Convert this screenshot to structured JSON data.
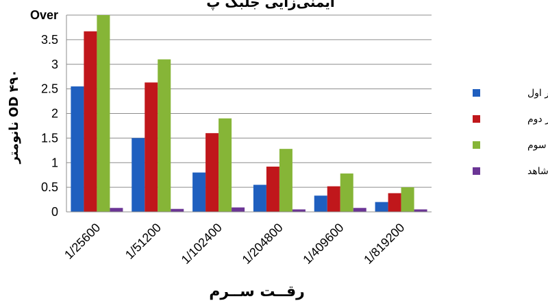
{
  "chart_data": {
    "type": "bar",
    "title": "ایمنی‌زایی جلبک پ",
    "xlabel": "رقــت ســرم",
    "ylabel": "OD ۴۹۰ نانومتر",
    "categories": [
      "1/25600",
      "1/51200",
      "1/102400",
      "1/204800",
      "1/409600",
      "1/819200"
    ],
    "y_ticks": [
      "Over",
      "3.5",
      "3",
      "2.5",
      "2",
      "1.5",
      "1",
      "0.5",
      "0"
    ],
    "ylim": [
      0,
      4
    ],
    "grid": "horizontal",
    "legend_position": "right",
    "series": [
      {
        "name": "یادآور اول",
        "color": "#1f5fbf",
        "values": [
          2.55,
          1.5,
          0.8,
          0.55,
          0.33,
          0.2
        ]
      },
      {
        "name": "یادآور دوم",
        "color": "#c0171b",
        "values": [
          3.67,
          2.63,
          1.6,
          0.92,
          0.52,
          0.38
        ]
      },
      {
        "name": "یادآور سوم",
        "color": "#86b537",
        "values": [
          4.0,
          3.1,
          1.9,
          1.28,
          0.78,
          0.5
        ]
      },
      {
        "name": "شاهد",
        "color": "#6b3595",
        "values": [
          0.08,
          0.06,
          0.09,
          0.05,
          0.08,
          0.05
        ]
      }
    ]
  }
}
